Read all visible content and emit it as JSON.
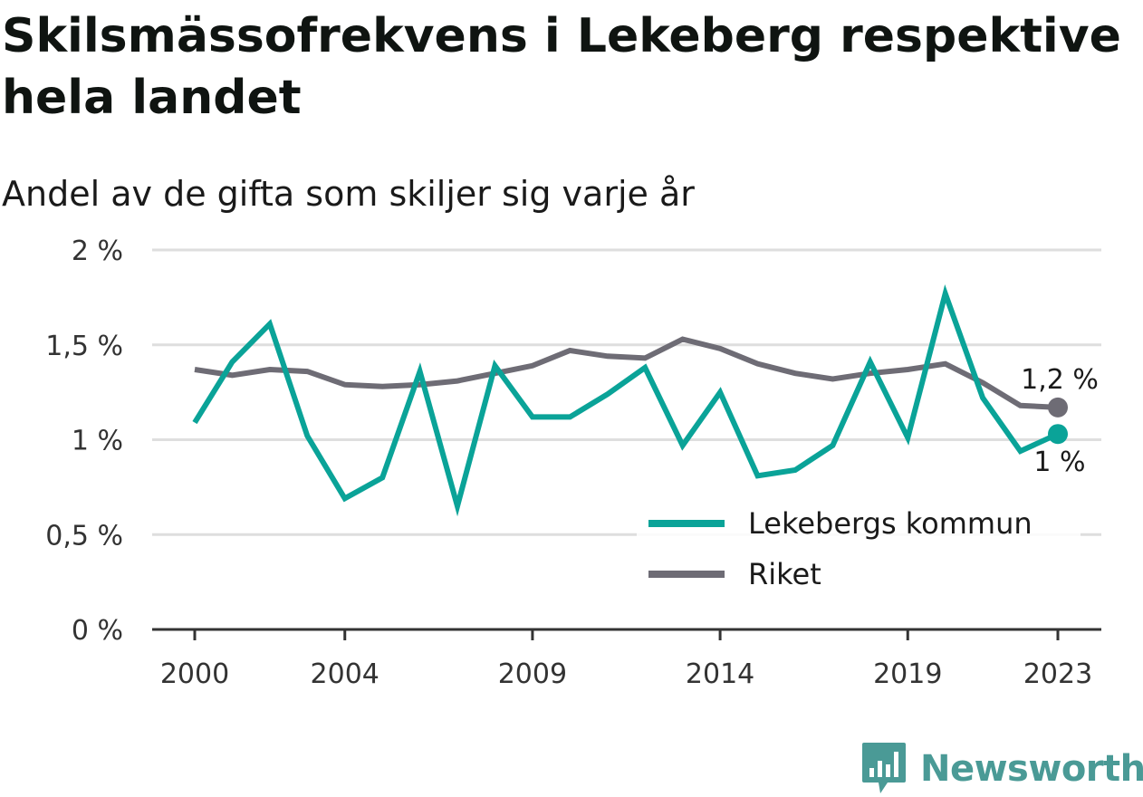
{
  "title": "Skilsmässofrekvens i Lekeberg respektive hela landet",
  "subtitle": "Andel av de gifta som skiljer sig varje år",
  "brand": {
    "name": "Newsworthy",
    "icon": "bar-chart-speech-bubble-icon",
    "color": "#4a9a96"
  },
  "chart_data": {
    "type": "line",
    "title": "Skilsmässofrekvens i Lekeberg respektive hela landet",
    "subtitle": "Andel av de gifta som skiljer sig varje år",
    "xlabel": "",
    "ylabel": "",
    "x": [
      2000,
      2001,
      2002,
      2003,
      2004,
      2005,
      2006,
      2007,
      2008,
      2009,
      2010,
      2011,
      2012,
      2013,
      2014,
      2015,
      2016,
      2017,
      2018,
      2019,
      2020,
      2021,
      2022,
      2023
    ],
    "x_ticks": [
      2000,
      2004,
      2009,
      2014,
      2019,
      2023
    ],
    "x_tick_labels": [
      "2000",
      "2004",
      "2009",
      "2014",
      "2019",
      "2023"
    ],
    "xlim": [
      2000,
      2023
    ],
    "ylim": [
      0,
      2
    ],
    "y_ticks": [
      0,
      0.5,
      1,
      1.5,
      2
    ],
    "y_tick_labels": [
      "0 %",
      "0,5 %",
      "1 %",
      "1,5 %",
      "2 %"
    ],
    "grid": true,
    "legend_position": "bottom-right",
    "series": [
      {
        "name": "Lekebergs kommun",
        "color": "#0aa398",
        "values": [
          1.09,
          1.41,
          1.61,
          1.02,
          0.69,
          0.8,
          1.36,
          0.65,
          1.39,
          1.12,
          1.12,
          1.24,
          1.38,
          0.97,
          1.25,
          0.81,
          0.84,
          0.97,
          1.41,
          1.01,
          1.77,
          1.22,
          0.94,
          1.03
        ],
        "end_label": "1 %"
      },
      {
        "name": "Riket",
        "color": "#6e6c75",
        "values": [
          1.37,
          1.34,
          1.37,
          1.36,
          1.29,
          1.28,
          1.29,
          1.31,
          1.35,
          1.39,
          1.47,
          1.44,
          1.43,
          1.53,
          1.48,
          1.4,
          1.35,
          1.32,
          1.35,
          1.37,
          1.4,
          1.3,
          1.18,
          1.17
        ],
        "end_label": "1,2 %"
      }
    ]
  }
}
